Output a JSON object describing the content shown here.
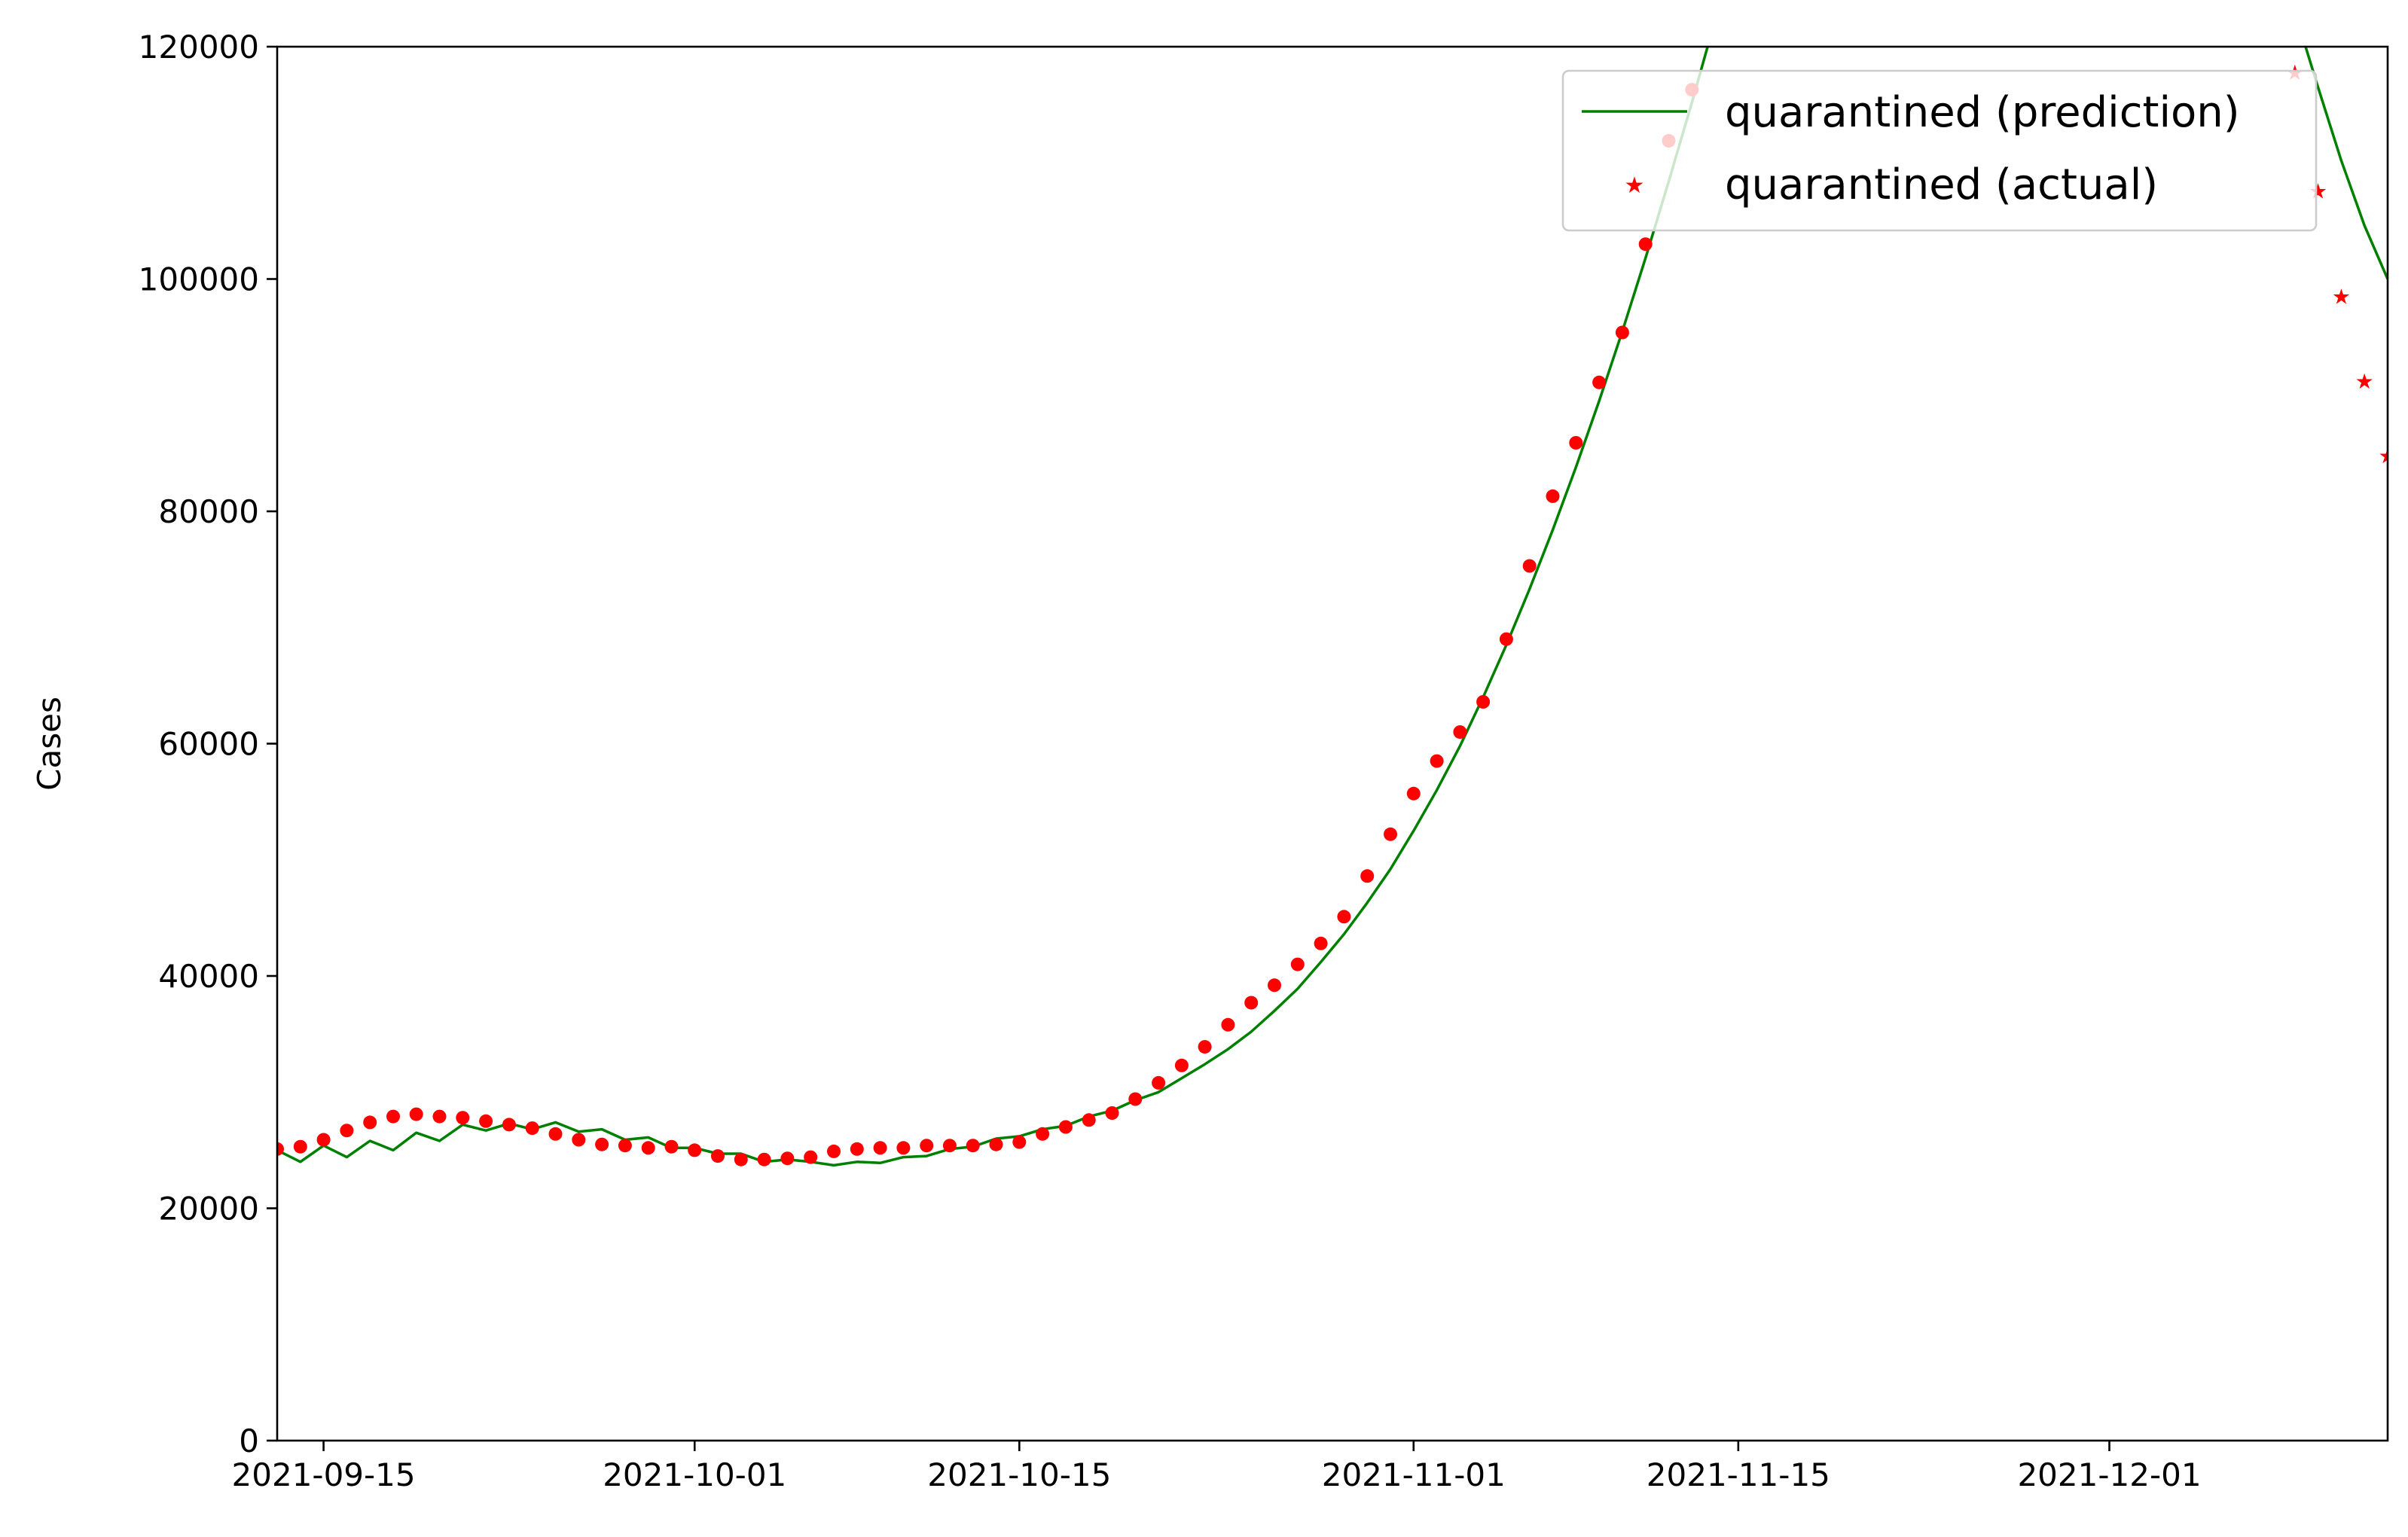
{
  "chart_data": {
    "type": "line",
    "title": "",
    "xlabel": "",
    "ylabel": "Cases",
    "ylim": [
      0,
      120000
    ],
    "xlim": [
      "2021-09-13",
      "2021-12-13"
    ],
    "x_ticks": [
      "2021-09-15",
      "2021-10-01",
      "2021-10-15",
      "2021-11-01",
      "2021-11-15",
      "2021-12-01"
    ],
    "y_ticks": [
      0,
      20000,
      40000,
      60000,
      80000,
      100000,
      120000
    ],
    "y_tick_labels": [
      "0",
      "20000",
      "40000",
      "60000",
      "80000",
      "100000",
      "120000"
    ],
    "grid": false,
    "legend_position": "upper right",
    "series": [
      {
        "name": "quarantined (prediction)",
        "kind": "line",
        "color": "#008000",
        "points": [
          [
            "2021-09-13",
            25000
          ],
          [
            "2021-09-14",
            24000
          ],
          [
            "2021-09-15",
            25400
          ],
          [
            "2021-09-16",
            24400
          ],
          [
            "2021-09-17",
            25800
          ],
          [
            "2021-09-18",
            25000
          ],
          [
            "2021-09-19",
            26500
          ],
          [
            "2021-09-20",
            25800
          ],
          [
            "2021-09-21",
            27200
          ],
          [
            "2021-09-22",
            26700
          ],
          [
            "2021-09-23",
            27300
          ],
          [
            "2021-09-24",
            26800
          ],
          [
            "2021-09-25",
            27400
          ],
          [
            "2021-09-26",
            26600
          ],
          [
            "2021-09-27",
            26800
          ],
          [
            "2021-09-28",
            25900
          ],
          [
            "2021-09-29",
            26100
          ],
          [
            "2021-09-30",
            25200
          ],
          [
            "2021-10-01",
            25200
          ],
          [
            "2021-10-02",
            24700
          ],
          [
            "2021-10-03",
            24700
          ],
          [
            "2021-10-04",
            24000
          ],
          [
            "2021-10-05",
            24200
          ],
          [
            "2021-10-06",
            24000
          ],
          [
            "2021-10-07",
            23700
          ],
          [
            "2021-10-08",
            24000
          ],
          [
            "2021-10-09",
            23900
          ],
          [
            "2021-10-10",
            24400
          ],
          [
            "2021-10-11",
            24500
          ],
          [
            "2021-10-12",
            25100
          ],
          [
            "2021-10-13",
            25300
          ],
          [
            "2021-10-14",
            26000
          ],
          [
            "2021-10-15",
            26200
          ],
          [
            "2021-10-16",
            26800
          ],
          [
            "2021-10-17",
            27100
          ],
          [
            "2021-10-18",
            27900
          ],
          [
            "2021-10-19",
            28400
          ],
          [
            "2021-10-20",
            29300
          ],
          [
            "2021-10-21",
            30000
          ],
          [
            "2021-10-22",
            31200
          ],
          [
            "2021-10-23",
            32400
          ],
          [
            "2021-10-24",
            33700
          ],
          [
            "2021-10-25",
            35200
          ],
          [
            "2021-10-26",
            37000
          ],
          [
            "2021-10-27",
            38900
          ],
          [
            "2021-10-28",
            41200
          ],
          [
            "2021-10-29",
            43600
          ],
          [
            "2021-10-30",
            46300
          ],
          [
            "2021-10-31",
            49200
          ],
          [
            "2021-11-01",
            52500
          ],
          [
            "2021-11-02",
            56000
          ],
          [
            "2021-11-03",
            59800
          ],
          [
            "2021-11-04",
            64000
          ],
          [
            "2021-11-05",
            68500
          ],
          [
            "2021-11-06",
            73300
          ],
          [
            "2021-11-07",
            78400
          ],
          [
            "2021-11-08",
            83800
          ],
          [
            "2021-11-09",
            89500
          ],
          [
            "2021-11-10",
            95500
          ],
          [
            "2021-11-11",
            101800
          ],
          [
            "2021-11-12",
            108400
          ],
          [
            "2021-11-13",
            115200
          ],
          [
            "2021-11-14",
            122300
          ],
          [
            "2021-12-09",
            123000
          ],
          [
            "2021-12-10",
            116500
          ],
          [
            "2021-12-11",
            110200
          ],
          [
            "2021-12-12",
            104600
          ],
          [
            "2021-12-13",
            100000
          ]
        ]
      },
      {
        "name": "quarantined (actual)",
        "kind": "scatter",
        "color": "#ff0000",
        "points": [
          [
            "2021-09-13",
            25100
          ],
          [
            "2021-09-14",
            25300
          ],
          [
            "2021-09-15",
            25900
          ],
          [
            "2021-09-16",
            26700
          ],
          [
            "2021-09-17",
            27400
          ],
          [
            "2021-09-18",
            27900
          ],
          [
            "2021-09-19",
            28100
          ],
          [
            "2021-09-20",
            27900
          ],
          [
            "2021-09-21",
            27800
          ],
          [
            "2021-09-22",
            27500
          ],
          [
            "2021-09-23",
            27200
          ],
          [
            "2021-09-24",
            26900
          ],
          [
            "2021-09-25",
            26400
          ],
          [
            "2021-09-26",
            25900
          ],
          [
            "2021-09-27",
            25500
          ],
          [
            "2021-09-28",
            25400
          ],
          [
            "2021-09-29",
            25200
          ],
          [
            "2021-09-30",
            25300
          ],
          [
            "2021-10-01",
            25000
          ],
          [
            "2021-10-02",
            24500
          ],
          [
            "2021-10-03",
            24200
          ],
          [
            "2021-10-04",
            24200
          ],
          [
            "2021-10-05",
            24300
          ],
          [
            "2021-10-06",
            24400
          ],
          [
            "2021-10-07",
            24900
          ],
          [
            "2021-10-08",
            25100
          ],
          [
            "2021-10-09",
            25200
          ],
          [
            "2021-10-10",
            25200
          ],
          [
            "2021-10-11",
            25400
          ],
          [
            "2021-10-12",
            25400
          ],
          [
            "2021-10-13",
            25400
          ],
          [
            "2021-10-14",
            25500
          ],
          [
            "2021-10-15",
            25700
          ],
          [
            "2021-10-16",
            26400
          ],
          [
            "2021-10-17",
            27000
          ],
          [
            "2021-10-18",
            27600
          ],
          [
            "2021-10-19",
            28200
          ],
          [
            "2021-10-20",
            29400
          ],
          [
            "2021-10-21",
            30800
          ],
          [
            "2021-10-22",
            32300
          ],
          [
            "2021-10-23",
            33900
          ],
          [
            "2021-10-24",
            35800
          ],
          [
            "2021-10-25",
            37700
          ],
          [
            "2021-10-26",
            39200
          ],
          [
            "2021-10-27",
            41000
          ],
          [
            "2021-10-28",
            42800
          ],
          [
            "2021-10-29",
            45100
          ],
          [
            "2021-10-30",
            48600
          ],
          [
            "2021-10-31",
            52200
          ],
          [
            "2021-11-01",
            55700
          ],
          [
            "2021-11-02",
            58500
          ],
          [
            "2021-11-03",
            61000
          ],
          [
            "2021-11-04",
            63600
          ],
          [
            "2021-11-05",
            69000
          ],
          [
            "2021-11-06",
            75300
          ],
          [
            "2021-11-07",
            81300
          ],
          [
            "2021-11-08",
            85900
          ],
          [
            "2021-11-09",
            91100
          ],
          [
            "2021-11-10",
            95400
          ],
          [
            "2021-11-11",
            103000
          ],
          [
            "2021-11-12",
            111900
          ],
          [
            "2021-11-13",
            116300
          ],
          [
            "2021-12-09",
            117800
          ],
          [
            "2021-12-10",
            107600
          ],
          [
            "2021-12-11",
            98500
          ],
          [
            "2021-12-12",
            91200
          ],
          [
            "2021-12-13",
            84800
          ]
        ]
      }
    ]
  }
}
